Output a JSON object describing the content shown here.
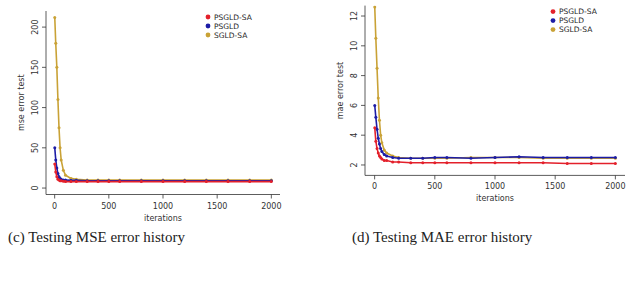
{
  "chart_data": [
    {
      "type": "line",
      "title": "(c) Testing MSE error history",
      "x_label": "iterations",
      "y_label": "mse error test",
      "x": [
        1,
        10,
        20,
        30,
        40,
        50,
        60,
        80,
        100,
        150,
        200,
        300,
        400,
        500,
        600,
        800,
        1000,
        1200,
        1400,
        1600,
        1800,
        2000
      ],
      "xlim": [
        -80,
        2080
      ],
      "xticks": [
        0,
        500,
        1000,
        1500,
        2000
      ],
      "ylim": [
        -8,
        220
      ],
      "yticks": [
        0,
        50,
        100,
        150,
        200
      ],
      "grid": false,
      "legend": "topright",
      "marker": "circle",
      "series": [
        {
          "name": "PSGLD-SA",
          "color": "#e3202b",
          "values": [
            30,
            20,
            14,
            11,
            10,
            9,
            9,
            8.5,
            8,
            8,
            8,
            8,
            8,
            8,
            8,
            8,
            8,
            8,
            8,
            8,
            8,
            8
          ]
        },
        {
          "name": "PSGLD",
          "color": "#1c1ca6",
          "values": [
            50,
            35,
            25,
            18,
            14,
            12,
            11,
            10,
            10,
            9.5,
            9.5,
            9,
            9,
            9,
            9,
            9,
            9,
            9,
            9,
            9,
            9,
            9
          ]
        },
        {
          "name": "SGLD-SA",
          "color": "#c9a236",
          "values": [
            212,
            180,
            150,
            110,
            75,
            50,
            35,
            22,
            16,
            12,
            11,
            10,
            10,
            10,
            10,
            10,
            10,
            10,
            10,
            10,
            10,
            10
          ]
        }
      ]
    },
    {
      "type": "line",
      "title": "(d) Testing MAE error history",
      "x_label": "iterations",
      "y_label": "mae error test",
      "x": [
        1,
        10,
        20,
        30,
        40,
        50,
        60,
        80,
        100,
        150,
        200,
        300,
        400,
        500,
        600,
        800,
        1000,
        1200,
        1400,
        1600,
        1800,
        2000
      ],
      "xlim": [
        -80,
        2080
      ],
      "xticks": [
        0,
        500,
        1000,
        1500,
        2000
      ],
      "ylim": [
        1.3,
        12.7
      ],
      "yticks": [
        2,
        4,
        6,
        8,
        10,
        12
      ],
      "grid": false,
      "legend": "topright",
      "marker": "circle",
      "series": [
        {
          "name": "PSGLD-SA",
          "color": "#e3202b",
          "values": [
            4.5,
            3.6,
            3.1,
            2.8,
            2.6,
            2.5,
            2.4,
            2.3,
            2.3,
            2.2,
            2.2,
            2.15,
            2.15,
            2.15,
            2.15,
            2.15,
            2.15,
            2.15,
            2.15,
            2.1,
            2.1,
            2.1
          ]
        },
        {
          "name": "PSGLD",
          "color": "#1c1ca6",
          "values": [
            6,
            5.2,
            4.4,
            3.8,
            3.4,
            3.1,
            2.9,
            2.7,
            2.6,
            2.5,
            2.45,
            2.45,
            2.45,
            2.5,
            2.5,
            2.45,
            2.5,
            2.55,
            2.5,
            2.5,
            2.5,
            2.5
          ]
        },
        {
          "name": "SGLD-SA",
          "color": "#c9a236",
          "values": [
            12.6,
            10.5,
            8.5,
            6.5,
            5,
            4,
            3.5,
            3,
            2.8,
            2.6,
            2.5,
            2.45,
            2.45,
            2.45,
            2.45,
            2.5,
            2.5,
            2.5,
            2.45,
            2.45,
            2.45,
            2.45
          ]
        }
      ]
    }
  ]
}
